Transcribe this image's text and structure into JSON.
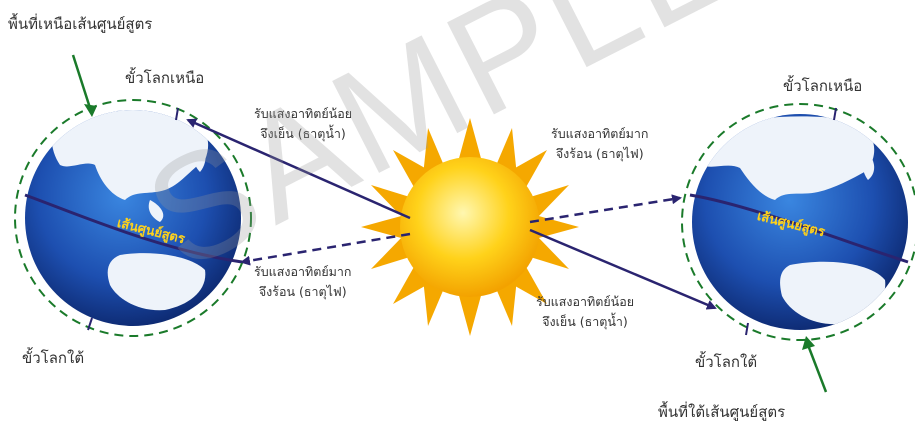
{
  "labels": {
    "north_hemisphere": "พื้นที่เหนือเส้นศูนย์สูตร",
    "south_hemisphere": "พื้นที่ใต้เส้นศูนย์สูตร",
    "north_pole_left": "ขั้วโลกเหนือ",
    "north_pole_right": "ขั้วโลกเหนือ",
    "south_pole_left": "ขั้วโลกใต้",
    "south_pole_right": "ขั้วโลกใต้",
    "equator_left": "เส้นศูนย์สูตร",
    "equator_right": "เส้นศูนย์สูตร",
    "top_left_note": {
      "line1": "รับแสงอาทิตย์น้อย",
      "line2": "จึงเย็น (ธาตุน้ำ)"
    },
    "bottom_left_note": {
      "line1": "รับแสงอาทิตย์มาก",
      "line2": "จึงร้อน (ธาตุไฟ)"
    },
    "top_right_note": {
      "line1": "รับแสงอาทิตย์มาก",
      "line2": "จึงร้อน (ธาตุไฟ)"
    },
    "bottom_right_note": {
      "line1": "รับแสงอาทิตย์น้อย",
      "line2": "จึงเย็น (ธาตุน้ำ)"
    }
  },
  "watermark": "SAMPLE",
  "colors": {
    "ocean_dark": "#0d2a78",
    "ocean_light": "#2f6fd0",
    "land": "#f2f6fb",
    "equator": "#2a2470",
    "orbit_dash": "#1a7a2a",
    "sun_core": "#ffcc10",
    "sun_rays": "#f5a800",
    "ray_line": "#2a2470"
  }
}
